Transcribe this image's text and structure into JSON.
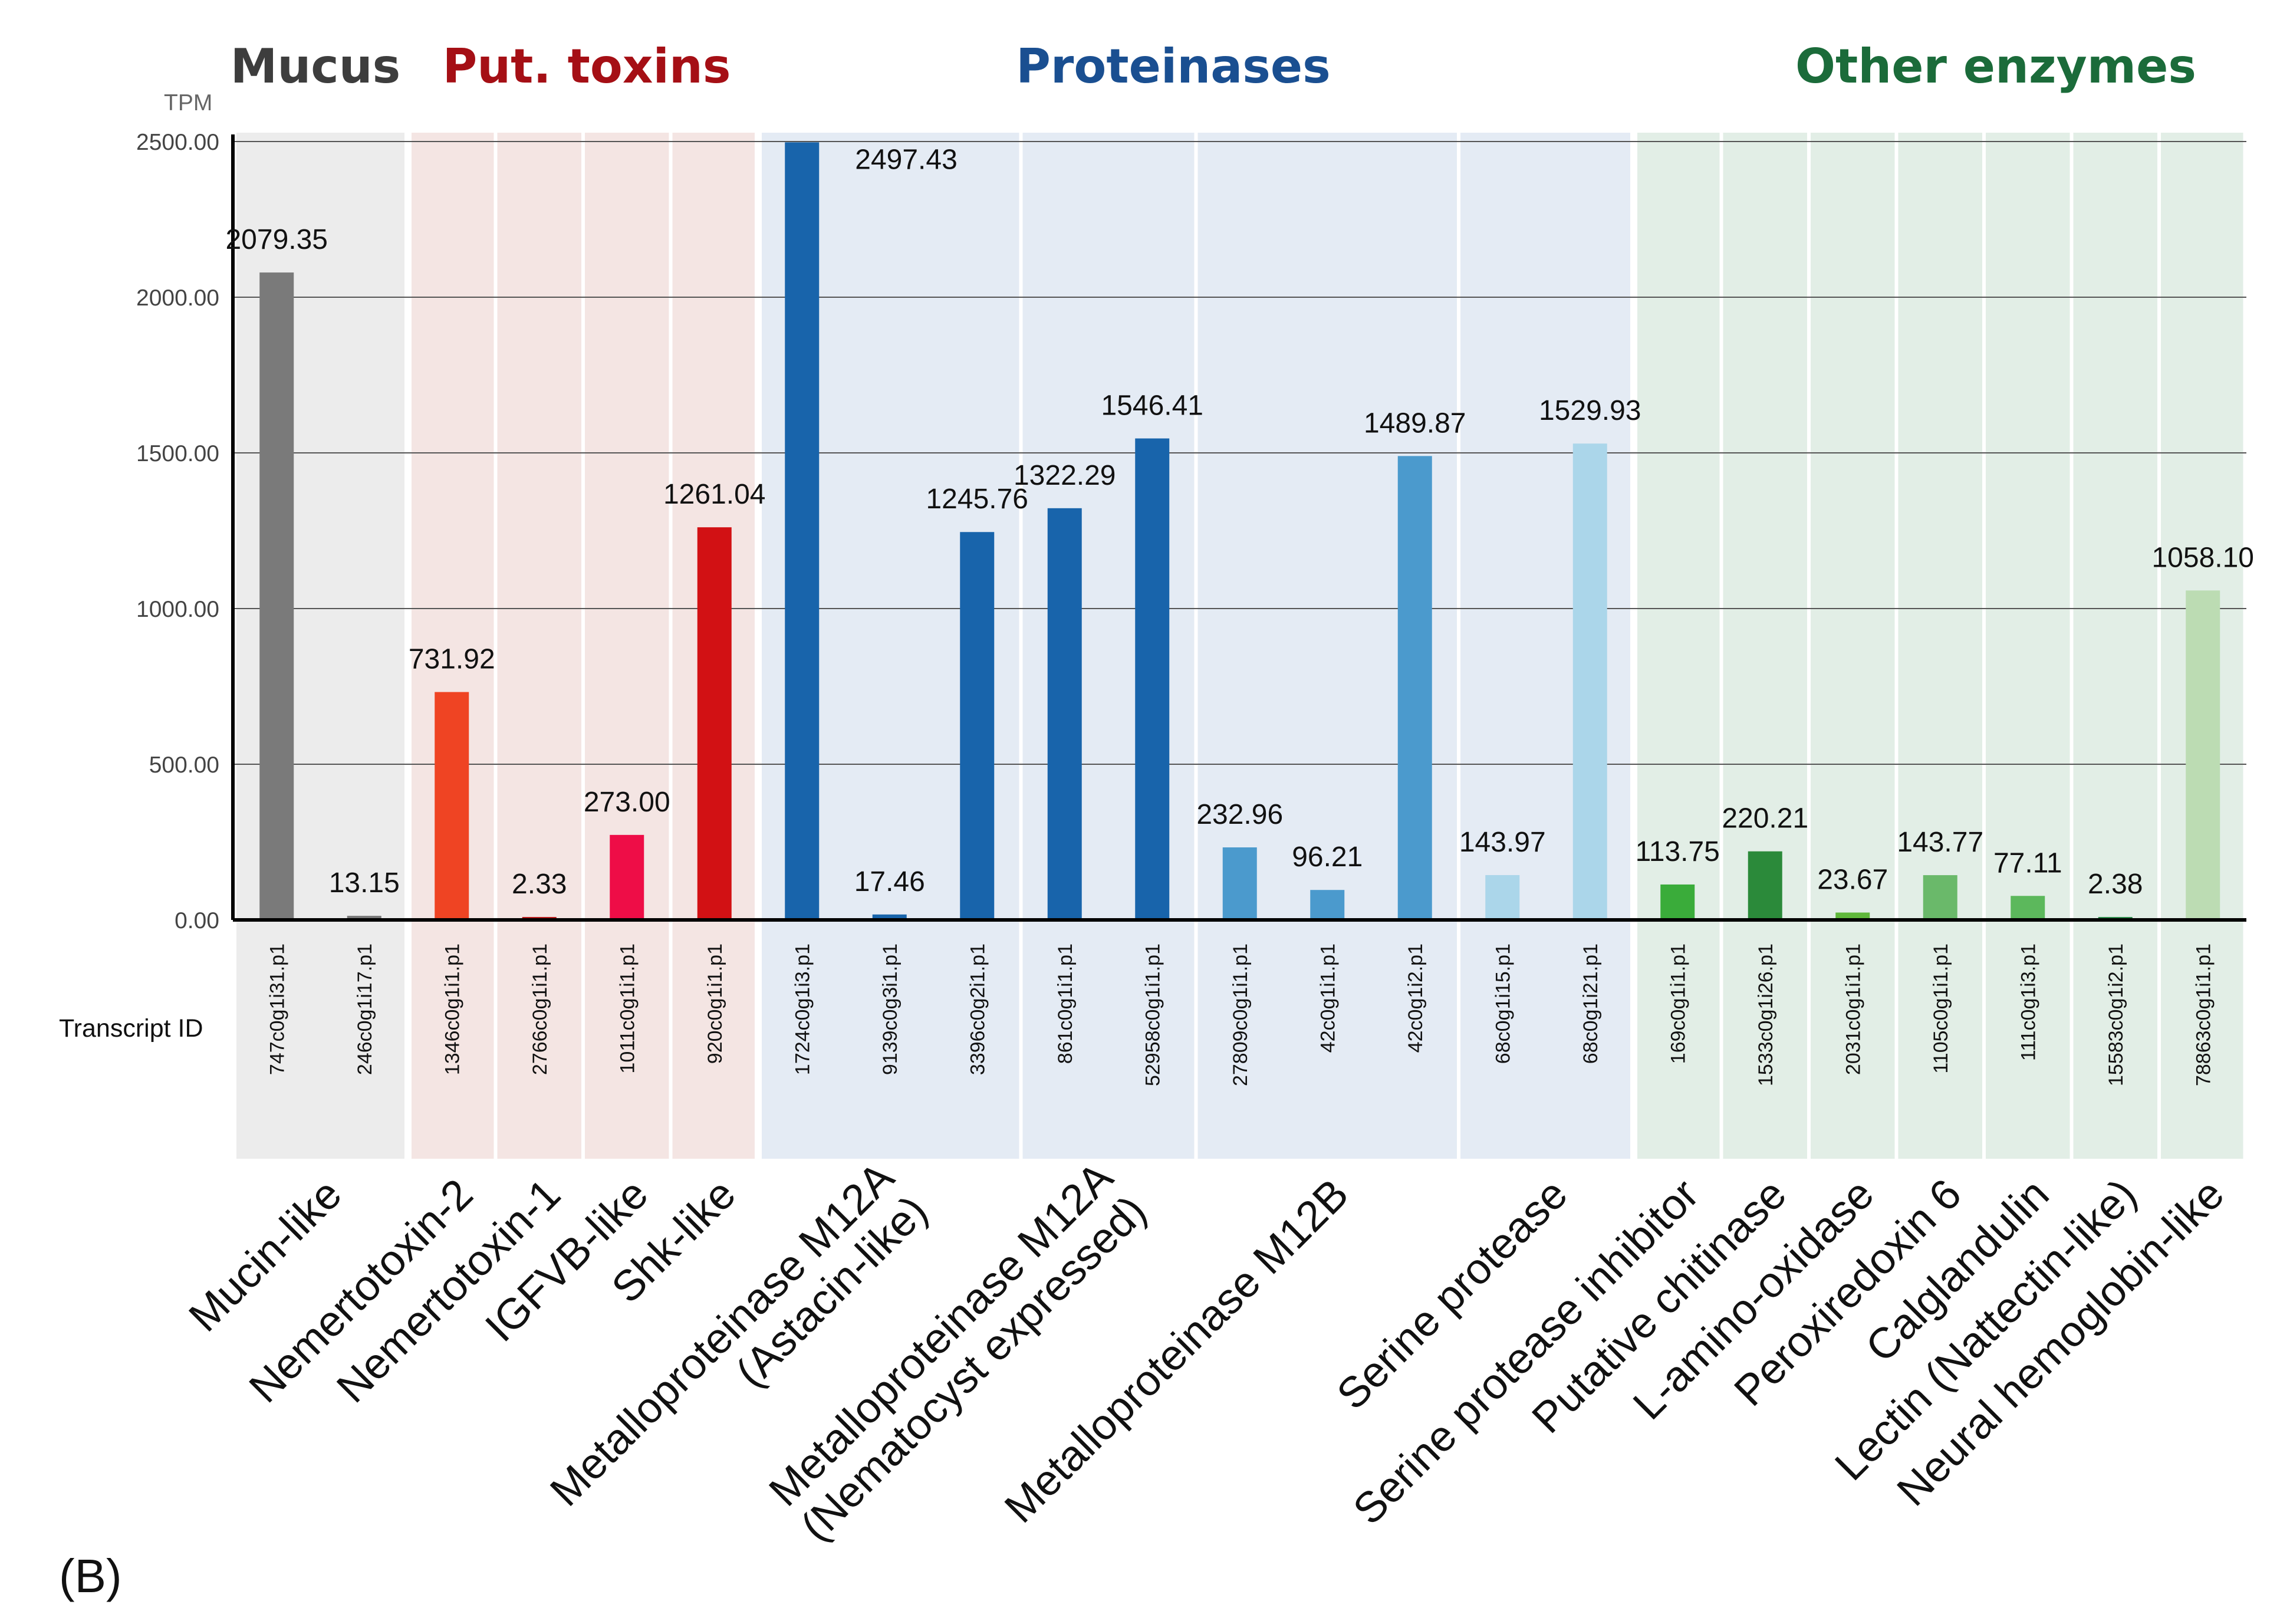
{
  "figure_label": "(B)",
  "chart_data": {
    "type": "bar",
    "ylabel": "TPM",
    "xlabel": "Transcript ID",
    "ylim": [
      0,
      2500
    ],
    "yticks": [
      "0.00",
      "500.00",
      "1000.00",
      "1500.00",
      "2000.00",
      "2500.00"
    ],
    "grid": true,
    "groups": [
      {
        "name": "Mucus",
        "color": "#3d3d3d",
        "bg": "#ececec"
      },
      {
        "name": "Put. toxins",
        "color": "#a50f15",
        "bg": "#f4e5e3"
      },
      {
        "name": "Proteinases",
        "color": "#1a4f91",
        "bg": "#e4ebf4"
      },
      {
        "name": "Other enzymes",
        "color": "#1b6b3a",
        "bg": "#e2eee6"
      }
    ],
    "categories": [
      {
        "lines": [
          "Mucin-like"
        ],
        "group": 0
      },
      {
        "lines": [
          "Nemertotoxin-2"
        ],
        "group": 1
      },
      {
        "lines": [
          "Nemertotoxin-1"
        ],
        "group": 1
      },
      {
        "lines": [
          "IGFVB-like"
        ],
        "group": 1
      },
      {
        "lines": [
          "Shk-like"
        ],
        "group": 1
      },
      {
        "lines": [
          "Metalloproteinase M12A",
          "(Astacin-like)"
        ],
        "group": 2
      },
      {
        "lines": [
          "Metalloproteinase M12A",
          "(Nematocyst expressed)"
        ],
        "group": 2
      },
      {
        "lines": [
          "Metalloproteinase M12B"
        ],
        "group": 2
      },
      {
        "lines": [
          "Serine protease"
        ],
        "group": 2
      },
      {
        "lines": [
          "Serine protease inhibitor"
        ],
        "group": 3
      },
      {
        "lines": [
          "Putative chitinase"
        ],
        "group": 3
      },
      {
        "lines": [
          "L-amino-oxidase"
        ],
        "group": 3
      },
      {
        "lines": [
          "Peroxiredoxin 6"
        ],
        "group": 3
      },
      {
        "lines": [
          "Calglandulin"
        ],
        "group": 3
      },
      {
        "lines": [
          "Lectin (Nattectin-like)"
        ],
        "group": 3
      },
      {
        "lines": [
          "Neural hemoglobin-like"
        ],
        "group": 3
      }
    ],
    "bars": [
      {
        "id": "747c0g1i31.p1",
        "value": 2079.35,
        "label": "2079.35",
        "category": 0,
        "color": "#7a7a7a"
      },
      {
        "id": "246c0g1i17.p1",
        "value": 13.15,
        "label": "13.15",
        "category": 0,
        "color": "#7a7a7a"
      },
      {
        "id": "1346c0g1i1.p1",
        "value": 731.92,
        "label": "731.92",
        "category": 1,
        "color": "#ef4423"
      },
      {
        "id": "2766c0g1i1.p1",
        "value": 2.33,
        "label": "2.33",
        "category": 2,
        "color": "#b71c1c"
      },
      {
        "id": "1011c0g1i1.p1",
        "value": 273.0,
        "label": "273.00",
        "category": 3,
        "color": "#ee0d47"
      },
      {
        "id": "920c0g1i1.p1",
        "value": 1261.04,
        "label": "1261.04",
        "category": 4,
        "color": "#d21114"
      },
      {
        "id": "1724c0g1i3.p1",
        "value": 2497.43,
        "label": "2497.43",
        "category": 5,
        "color": "#1864ab"
      },
      {
        "id": "9139c0g3i1.p1",
        "value": 17.46,
        "label": "17.46",
        "category": 5,
        "color": "#1864ab"
      },
      {
        "id": "3396c0g2i1.p1",
        "value": 1245.76,
        "label": "1245.76",
        "category": 5,
        "color": "#1864ab"
      },
      {
        "id": "861c0g1i1.p1",
        "value": 1322.29,
        "label": "1322.29",
        "category": 6,
        "color": "#1864ab"
      },
      {
        "id": "52958c0g1i1.p1",
        "value": 1546.41,
        "label": "1546.41",
        "category": 6,
        "color": "#1864ab"
      },
      {
        "id": "27809c0g1i1.p1",
        "value": 232.96,
        "label": "232.96",
        "category": 7,
        "color": "#4b9acd"
      },
      {
        "id": "42c0g1i1.p1",
        "value": 96.21,
        "label": "96.21",
        "category": 7,
        "color": "#4b9acd"
      },
      {
        "id": "42c0g1i2.p1",
        "value": 1489.87,
        "label": "1489.87",
        "category": 7,
        "color": "#4b9acd"
      },
      {
        "id": "68c0g1i15.p1",
        "value": 143.97,
        "label": "143.97",
        "category": 8,
        "color": "#abd6ea"
      },
      {
        "id": "68c0g1i21.p1",
        "value": 1529.93,
        "label": "1529.93",
        "category": 8,
        "color": "#abd6ea"
      },
      {
        "id": "169c0g1i1.p1",
        "value": 113.75,
        "label": "113.75",
        "category": 9,
        "color": "#3aac3a"
      },
      {
        "id": "1533c0g1i26.p1",
        "value": 220.21,
        "label": "220.21",
        "category": 10,
        "color": "#2b8a3a"
      },
      {
        "id": "2031c0g1i1.p1",
        "value": 23.67,
        "label": "23.67",
        "category": 11,
        "color": "#5fb83a"
      },
      {
        "id": "1105c0g1i1.p1",
        "value": 143.77,
        "label": "143.77",
        "category": 12,
        "color": "#6ab96a"
      },
      {
        "id": "111c0g1i3.p1",
        "value": 77.11,
        "label": "77.11",
        "category": 13,
        "color": "#5cb85c"
      },
      {
        "id": "15583c0g1i2.p1",
        "value": 2.38,
        "label": "2.38",
        "category": 14,
        "color": "#2d8a4a"
      },
      {
        "id": "78863c0g1i1.p1",
        "value": 1058.1,
        "label": "1058.10",
        "category": 15,
        "color": "#bcdcb3"
      }
    ]
  }
}
